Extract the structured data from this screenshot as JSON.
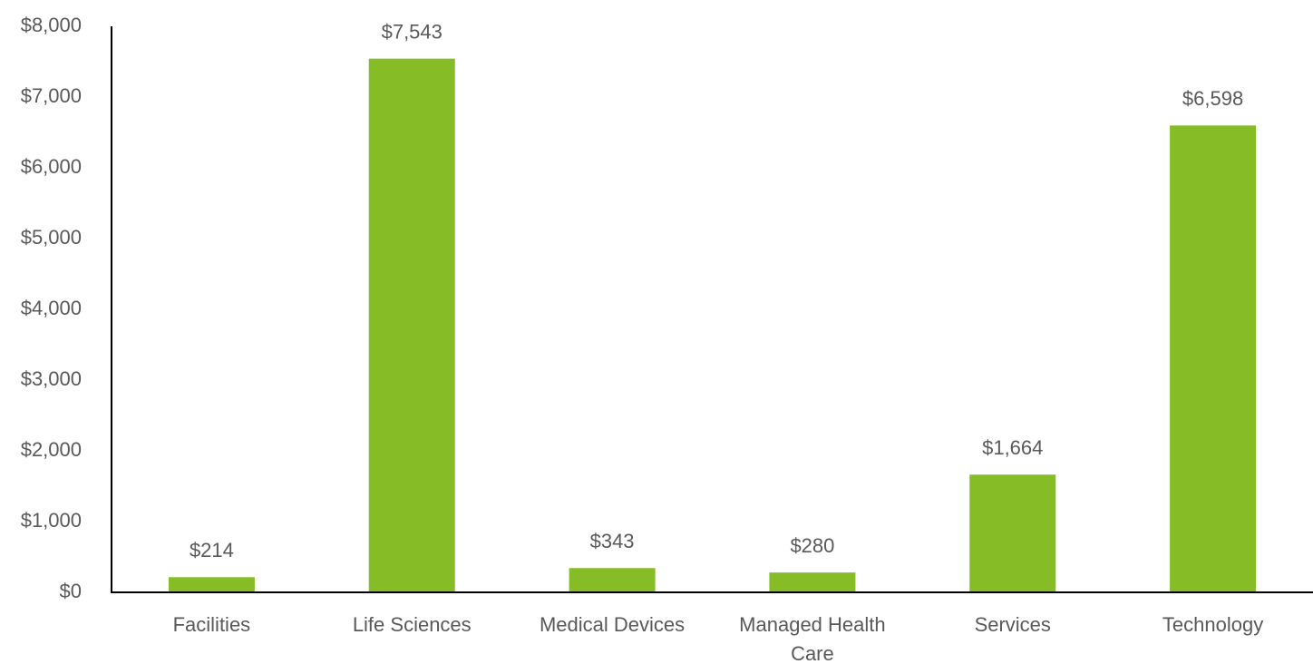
{
  "chart_data": {
    "type": "bar",
    "categories": [
      "Facilities",
      "Life Sciences",
      "Medical Devices",
      "Managed Health Care",
      "Services",
      "Technology"
    ],
    "values": [
      214,
      7543,
      343,
      280,
      1664,
      6598
    ],
    "value_labels": [
      "$214",
      "$7,543",
      "$343",
      "$280",
      "$1,664",
      "$6,598"
    ],
    "color": "#86bc25",
    "ylim": [
      0,
      8000
    ],
    "yticks": [
      {
        "value": 0,
        "label": "$0"
      },
      {
        "value": 1000,
        "label": "$1,000"
      },
      {
        "value": 2000,
        "label": "$2,000"
      },
      {
        "value": 3000,
        "label": "$3,000"
      },
      {
        "value": 4000,
        "label": "$4,000"
      },
      {
        "value": 5000,
        "label": "$5,000"
      },
      {
        "value": 6000,
        "label": "$6,000"
      },
      {
        "value": 7000,
        "label": "$7,000"
      },
      {
        "value": 8000,
        "label": "$8,000"
      }
    ],
    "grid": false
  }
}
